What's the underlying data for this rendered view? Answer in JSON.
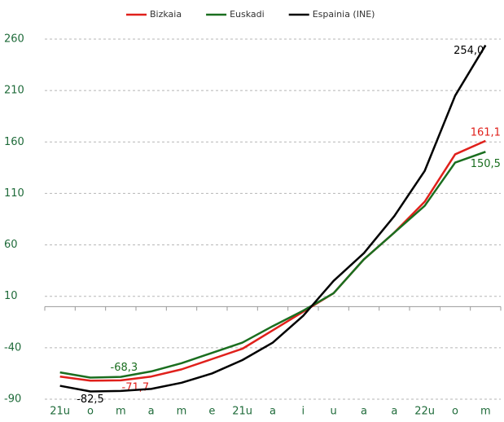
{
  "chart_data": {
    "type": "line",
    "categories": [
      "21u",
      "o",
      "m",
      "a",
      "m",
      "e",
      "21u",
      "a",
      "i",
      "u",
      "a",
      "a",
      "22u",
      "o",
      "m"
    ],
    "series": [
      {
        "name": "Bizkaia",
        "color": "#e0201b",
        "values": [
          -68,
          -72,
          -71.7,
          -68,
          -61,
          -51,
          -41,
          -23,
          -5,
          13,
          46,
          72,
          102,
          148,
          161.1
        ],
        "value_labels": [
          null,
          null,
          "-71,7",
          null,
          null,
          null,
          null,
          null,
          null,
          null,
          null,
          null,
          null,
          null,
          "161,1"
        ]
      },
      {
        "name": "Euskadi",
        "color": "#1a6e1f",
        "values": [
          -64,
          -69,
          -68.3,
          -63,
          -55,
          -45,
          -35,
          -19,
          -4,
          13,
          46,
          72,
          98,
          140,
          150.5
        ],
        "value_labels": [
          null,
          null,
          "-68,3",
          null,
          null,
          null,
          null,
          null,
          null,
          null,
          null,
          null,
          null,
          null,
          "150,5"
        ]
      },
      {
        "name": "Espainia (INE)",
        "color": "#000000",
        "values": [
          -77,
          -82.5,
          -82,
          -80,
          -74,
          -65,
          -52,
          -35,
          -9,
          25,
          52,
          88,
          132,
          205,
          254
        ],
        "value_labels": [
          null,
          "-82,5",
          null,
          null,
          null,
          null,
          null,
          null,
          null,
          null,
          null,
          null,
          null,
          null,
          "254,0"
        ]
      }
    ],
    "ylim": [
      -90,
      260
    ],
    "yticks": [
      -90,
      -40,
      10,
      60,
      110,
      160,
      210,
      260
    ],
    "grid": true,
    "legend": "top"
  }
}
